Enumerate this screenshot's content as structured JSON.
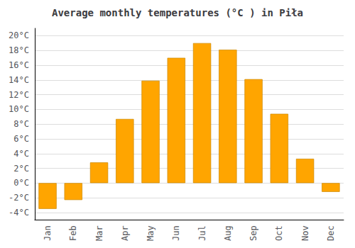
{
  "chart_data": {
    "type": "bar",
    "title": "Average monthly temperatures (°C ) in Piła",
    "categories": [
      "Jan",
      "Feb",
      "Mar",
      "Apr",
      "May",
      "Jun",
      "Jul",
      "Aug",
      "Sep",
      "Oct",
      "Nov",
      "Dec"
    ],
    "values": [
      -3.5,
      -2.3,
      2.8,
      8.7,
      13.9,
      17.0,
      19.0,
      18.1,
      14.1,
      9.4,
      3.3,
      -1.2
    ],
    "color": "#FFA500",
    "ylim": [
      -5,
      21
    ],
    "yticks": [
      {
        "value": -4,
        "label": "-4°C"
      },
      {
        "value": -2,
        "label": "-2°C"
      },
      {
        "value": 0,
        "label": "0°C"
      },
      {
        "value": 2,
        "label": "2°C"
      },
      {
        "value": 4,
        "label": "4°C"
      },
      {
        "value": 6,
        "label": "6°C"
      },
      {
        "value": 8,
        "label": "8°C"
      },
      {
        "value": 10,
        "label": "10°C"
      },
      {
        "value": 12,
        "label": "12°C"
      },
      {
        "value": 14,
        "label": "14°C"
      },
      {
        "value": 16,
        "label": "16°C"
      },
      {
        "value": 18,
        "label": "18°C"
      },
      {
        "value": 20,
        "label": "20°C"
      }
    ],
    "grid": true
  }
}
